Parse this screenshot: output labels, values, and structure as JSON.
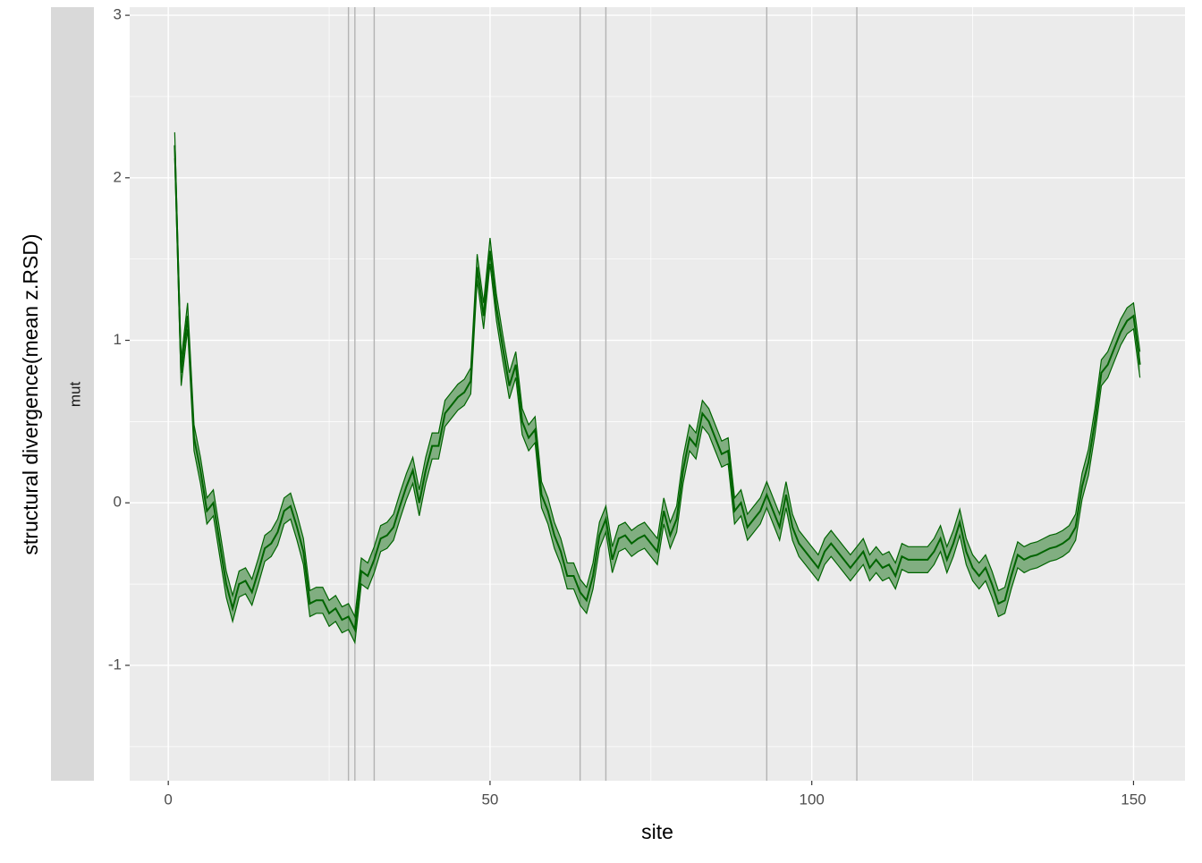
{
  "chart_data": {
    "type": "ribbon",
    "x_label": "site",
    "y_label": "structural divergence(mean z.RSD)",
    "strip_label": "mut",
    "xlim": [
      -6,
      158
    ],
    "ylim": [
      -1.71,
      3.05
    ],
    "xticks": [
      0,
      50,
      100,
      150
    ],
    "yticks": [
      -1,
      0,
      1,
      2,
      3
    ],
    "x_minor_ticks": [
      25,
      75,
      125
    ],
    "y_minor_ticks": [
      -1.5,
      -0.5,
      0.5,
      1.5,
      2.5
    ],
    "grid": true,
    "color": "#006400",
    "vline_color": "#b3b3b3",
    "vlines": [
      28,
      29,
      32,
      64,
      68,
      93,
      107
    ],
    "x": [
      1,
      2,
      3,
      4,
      5,
      6,
      7,
      8,
      9,
      10,
      11,
      12,
      13,
      14,
      15,
      16,
      17,
      18,
      19,
      20,
      21,
      22,
      23,
      24,
      25,
      26,
      27,
      28,
      29,
      30,
      31,
      32,
      33,
      34,
      35,
      36,
      37,
      38,
      39,
      40,
      41,
      42,
      43,
      44,
      45,
      46,
      47,
      48,
      49,
      50,
      51,
      52,
      53,
      54,
      55,
      56,
      57,
      58,
      59,
      60,
      61,
      62,
      63,
      64,
      65,
      66,
      67,
      68,
      69,
      70,
      71,
      72,
      73,
      74,
      75,
      76,
      77,
      78,
      79,
      80,
      81,
      82,
      83,
      84,
      85,
      86,
      87,
      88,
      89,
      90,
      91,
      92,
      93,
      94,
      95,
      96,
      97,
      98,
      99,
      100,
      101,
      102,
      103,
      104,
      105,
      106,
      107,
      108,
      109,
      110,
      111,
      112,
      113,
      114,
      115,
      116,
      117,
      118,
      119,
      120,
      121,
      122,
      123,
      124,
      125,
      126,
      127,
      128,
      129,
      130,
      131,
      132,
      133,
      134,
      135,
      136,
      137,
      138,
      139,
      140,
      141,
      142,
      143,
      144,
      145,
      146,
      147,
      148,
      149,
      150,
      151
    ],
    "values": [
      2.2,
      0.8,
      1.15,
      0.4,
      0.2,
      -0.05,
      0,
      -0.25,
      -0.5,
      -0.65,
      -0.5,
      -0.48,
      -0.55,
      -0.42,
      -0.28,
      -0.25,
      -0.18,
      -0.05,
      -0.02,
      -0.15,
      -0.3,
      -0.62,
      -0.6,
      -0.6,
      -0.68,
      -0.65,
      -0.72,
      -0.7,
      -0.78,
      -0.42,
      -0.45,
      -0.35,
      -0.22,
      -0.2,
      -0.15,
      -0.02,
      0.1,
      0.2,
      0,
      0.2,
      0.35,
      0.35,
      0.55,
      0.6,
      0.65,
      0.68,
      0.75,
      1.45,
      1.15,
      1.55,
      1.2,
      0.95,
      0.72,
      0.85,
      0.5,
      0.4,
      0.45,
      0.05,
      -0.05,
      -0.2,
      -0.3,
      -0.45,
      -0.45,
      -0.55,
      -0.6,
      -0.45,
      -0.2,
      -0.1,
      -0.35,
      -0.22,
      -0.2,
      -0.25,
      -0.22,
      -0.2,
      -0.25,
      -0.3,
      -0.05,
      -0.2,
      -0.1,
      0.2,
      0.4,
      0.35,
      0.55,
      0.5,
      0.4,
      0.3,
      0.32,
      -0.05,
      0,
      -0.15,
      -0.1,
      -0.05,
      0.05,
      -0.05,
      -0.15,
      0.05,
      -0.15,
      -0.25,
      -0.3,
      -0.35,
      -0.4,
      -0.3,
      -0.25,
      -0.3,
      -0.35,
      -0.4,
      -0.35,
      -0.3,
      -0.4,
      -0.35,
      -0.4,
      -0.38,
      -0.45,
      -0.33,
      -0.35,
      -0.35,
      -0.35,
      -0.35,
      -0.3,
      -0.22,
      -0.35,
      -0.25,
      -0.12,
      -0.3,
      -0.4,
      -0.45,
      -0.4,
      -0.5,
      -0.62,
      -0.6,
      -0.45,
      -0.32,
      -0.35,
      -0.33,
      -0.32,
      -0.3,
      -0.28,
      -0.27,
      -0.25,
      -0.22,
      -0.15,
      0.1,
      0.25,
      0.5,
      0.8,
      0.85,
      0.95,
      1.05,
      1.12,
      1.15,
      0.85
    ],
    "lower": [
      2.12,
      0.72,
      1.07,
      0.32,
      0.12,
      -0.13,
      -0.08,
      -0.33,
      -0.58,
      -0.73,
      -0.58,
      -0.56,
      -0.63,
      -0.5,
      -0.36,
      -0.33,
      -0.26,
      -0.13,
      -0.1,
      -0.23,
      -0.38,
      -0.7,
      -0.68,
      -0.68,
      -0.76,
      -0.73,
      -0.8,
      -0.78,
      -0.86,
      -0.5,
      -0.53,
      -0.43,
      -0.3,
      -0.28,
      -0.23,
      -0.1,
      0.02,
      0.12,
      -0.08,
      0.12,
      0.27,
      0.27,
      0.47,
      0.52,
      0.57,
      0.6,
      0.67,
      1.37,
      1.07,
      1.47,
      1.12,
      0.87,
      0.64,
      0.77,
      0.42,
      0.32,
      0.37,
      -0.03,
      -0.13,
      -0.28,
      -0.38,
      -0.53,
      -0.53,
      -0.63,
      -0.68,
      -0.53,
      -0.28,
      -0.18,
      -0.43,
      -0.3,
      -0.28,
      -0.33,
      -0.3,
      -0.28,
      -0.33,
      -0.38,
      -0.13,
      -0.28,
      -0.18,
      0.12,
      0.32,
      0.27,
      0.47,
      0.42,
      0.32,
      0.22,
      0.24,
      -0.13,
      -0.08,
      -0.23,
      -0.18,
      -0.13,
      -0.03,
      -0.13,
      -0.23,
      -0.03,
      -0.23,
      -0.33,
      -0.38,
      -0.43,
      -0.48,
      -0.38,
      -0.33,
      -0.38,
      -0.43,
      -0.48,
      -0.43,
      -0.38,
      -0.48,
      -0.43,
      -0.48,
      -0.46,
      -0.53,
      -0.41,
      -0.43,
      -0.43,
      -0.43,
      -0.43,
      -0.38,
      -0.3,
      -0.43,
      -0.33,
      -0.2,
      -0.38,
      -0.48,
      -0.53,
      -0.48,
      -0.58,
      -0.7,
      -0.68,
      -0.53,
      -0.4,
      -0.43,
      -0.41,
      -0.4,
      -0.38,
      -0.36,
      -0.35,
      -0.33,
      -0.3,
      -0.23,
      0.02,
      0.17,
      0.42,
      0.72,
      0.77,
      0.87,
      0.97,
      1.04,
      1.07,
      0.77
    ],
    "upper": [
      2.28,
      0.88,
      1.23,
      0.48,
      0.28,
      0.03,
      0.08,
      -0.17,
      -0.42,
      -0.57,
      -0.42,
      -0.4,
      -0.47,
      -0.34,
      -0.2,
      -0.17,
      -0.1,
      0.03,
      0.06,
      -0.07,
      -0.22,
      -0.54,
      -0.52,
      -0.52,
      -0.6,
      -0.57,
      -0.64,
      -0.62,
      -0.7,
      -0.34,
      -0.37,
      -0.27,
      -0.14,
      -0.12,
      -0.07,
      0.06,
      0.18,
      0.28,
      0.08,
      0.28,
      0.43,
      0.43,
      0.63,
      0.68,
      0.73,
      0.76,
      0.83,
      1.53,
      1.23,
      1.63,
      1.28,
      1.03,
      0.8,
      0.93,
      0.58,
      0.48,
      0.53,
      0.13,
      0.03,
      -0.12,
      -0.22,
      -0.37,
      -0.37,
      -0.47,
      -0.52,
      -0.37,
      -0.12,
      -0.02,
      -0.27,
      -0.14,
      -0.12,
      -0.17,
      -0.14,
      -0.12,
      -0.17,
      -0.22,
      0.03,
      -0.12,
      -0.02,
      0.28,
      0.48,
      0.43,
      0.63,
      0.58,
      0.48,
      0.38,
      0.4,
      0.03,
      0.08,
      -0.07,
      -0.02,
      0.03,
      0.13,
      0.03,
      -0.07,
      0.13,
      -0.07,
      -0.17,
      -0.22,
      -0.27,
      -0.32,
      -0.22,
      -0.17,
      -0.22,
      -0.27,
      -0.32,
      -0.27,
      -0.22,
      -0.32,
      -0.27,
      -0.32,
      -0.3,
      -0.37,
      -0.25,
      -0.27,
      -0.27,
      -0.27,
      -0.27,
      -0.22,
      -0.14,
      -0.27,
      -0.17,
      -0.04,
      -0.22,
      -0.32,
      -0.37,
      -0.32,
      -0.42,
      -0.54,
      -0.52,
      -0.37,
      -0.24,
      -0.27,
      -0.25,
      -0.24,
      -0.22,
      -0.2,
      -0.19,
      -0.17,
      -0.14,
      -0.07,
      0.18,
      0.33,
      0.58,
      0.88,
      0.93,
      1.03,
      1.13,
      1.2,
      1.23,
      0.93
    ]
  }
}
